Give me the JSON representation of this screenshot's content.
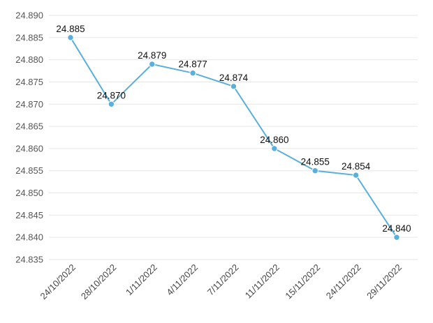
{
  "chart_data": {
    "type": "line",
    "title": "",
    "xlabel": "",
    "ylabel": "",
    "categories": [
      "24/10/2022",
      "28/10/2022",
      "1/11/2022",
      "4/11/2022",
      "7/11/2022",
      "11/11/2022",
      "15/11/2022",
      "24/11/2022",
      "29/11/2022"
    ],
    "series": [
      {
        "values": [
          24.885,
          24.87,
          24.879,
          24.877,
          24.874,
          24.86,
          24.855,
          24.854,
          24.84
        ],
        "data_labels": [
          "24.885",
          "24.870",
          "24.879",
          "24.877",
          "24.874",
          "24.860",
          "24.855",
          "24.854",
          "24.840"
        ]
      }
    ],
    "yticks": [
      "24.835",
      "24.840",
      "24.845",
      "24.850",
      "24.855",
      "24.860",
      "24.865",
      "24.870",
      "24.875",
      "24.880",
      "24.885",
      "24.890"
    ],
    "ylim": [
      24.835,
      24.89
    ],
    "grid": true,
    "legend": "none",
    "colors": {
      "line": "#5aafdc",
      "marker": "#5aafdc",
      "grid": "#e6e6e6"
    }
  }
}
